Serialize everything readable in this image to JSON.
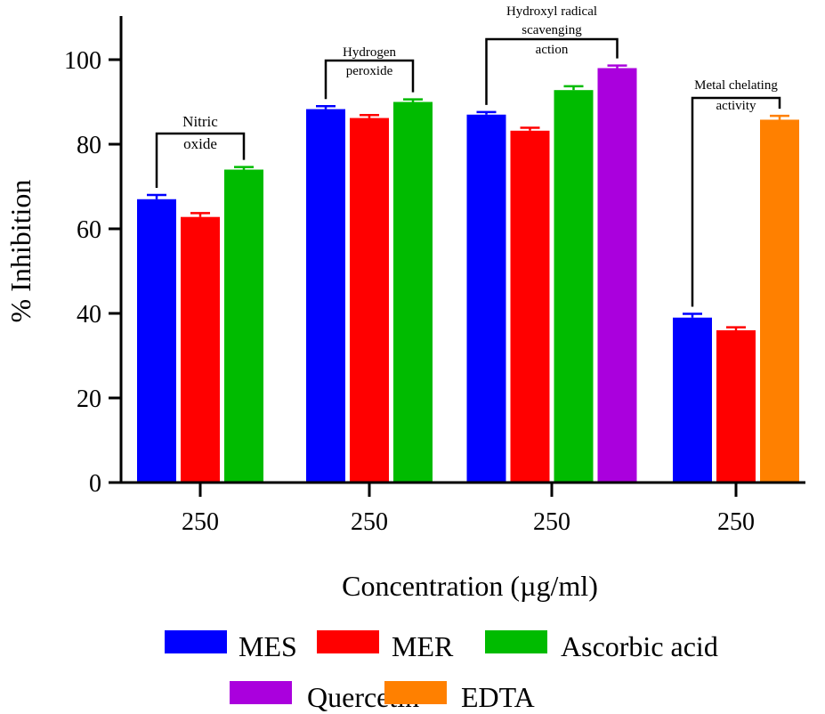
{
  "chart_data": {
    "type": "bar",
    "title": "",
    "xlabel": "Concentration (µg/ml)",
    "ylabel": "% Inhibition",
    "ylim": [
      0,
      110
    ],
    "yticks": [
      "0",
      "20",
      "40",
      "60",
      "80",
      "100"
    ],
    "groups": [
      {
        "category": "250",
        "annotation": [
          "Nitric",
          "oxide"
        ],
        "bars": [
          {
            "series": "MES",
            "value": 67,
            "error": 1.0
          },
          {
            "series": "MER",
            "value": 62.8,
            "error": 0.9
          },
          {
            "series": "Ascorbic acid",
            "value": 74,
            "error": 0.6
          }
        ]
      },
      {
        "category": "250",
        "annotation": [
          "Hydrogen",
          "peroxide"
        ],
        "bars": [
          {
            "series": "MES",
            "value": 88.3,
            "error": 0.7
          },
          {
            "series": "MER",
            "value": 86.2,
            "error": 0.7
          },
          {
            "series": "Ascorbic acid",
            "value": 90,
            "error": 0.6
          }
        ]
      },
      {
        "category": "250",
        "annotation": [
          "Hydroxyl radical",
          "scavenging",
          "action"
        ],
        "bars": [
          {
            "series": "MES",
            "value": 87,
            "error": 0.6
          },
          {
            "series": "MER",
            "value": 83.2,
            "error": 0.7
          },
          {
            "series": "Ascorbic acid",
            "value": 92.8,
            "error": 0.9
          },
          {
            "series": "Quercetin",
            "value": 98,
            "error": 0.6
          }
        ]
      },
      {
        "category": "250",
        "annotation": [
          "Metal chelating",
          "activity"
        ],
        "bars": [
          {
            "series": "MES",
            "value": 39,
            "error": 0.9
          },
          {
            "series": "MER",
            "value": 36,
            "error": 0.7
          },
          {
            "series": "EDTA",
            "value": 85.8,
            "error": 0.9
          }
        ]
      }
    ],
    "legend": [
      {
        "name": "MES",
        "color": "#0000ff"
      },
      {
        "name": "MER",
        "color": "#ff0000"
      },
      {
        "name": "Ascorbic acid",
        "color": "#00bb00"
      },
      {
        "name": "Quercetin",
        "color": "#aa00dd"
      },
      {
        "name": "EDTA",
        "color": "#ff8000"
      }
    ],
    "legend_position": "bottom"
  }
}
